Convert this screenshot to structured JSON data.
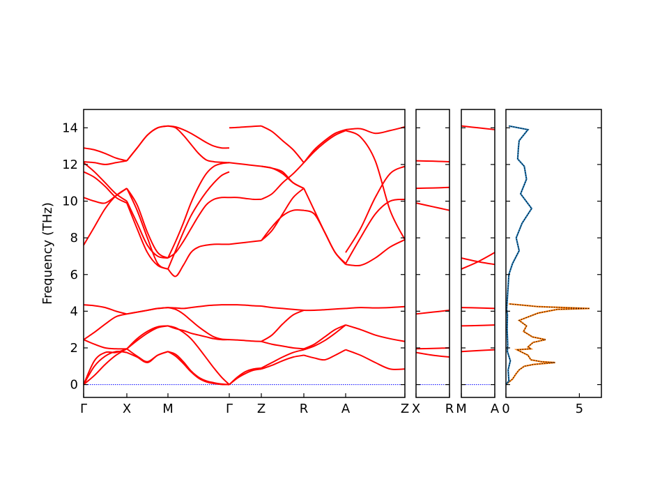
{
  "chart_data": [
    {
      "type": "line",
      "chart": "phonon-band-structure",
      "ylabel": "Frequency (THz)",
      "ylim": [
        -0.7,
        15.0
      ],
      "yticks": [
        0,
        2,
        4,
        6,
        8,
        10,
        12,
        14
      ],
      "grid": false,
      "series_color": "#ff0000",
      "zero_line_color": "#0000ff",
      "panels": [
        {
          "labels": [
            "Γ",
            "X",
            "M",
            "Γ",
            "Z",
            "R",
            "A",
            "Z"
          ],
          "segments": [
            {
              "from": "Γ",
              "to": "X",
              "x": [
                0,
                0.25,
                0.5,
                0.75,
                1
              ],
              "bands": [
                [
                  0,
                  1.0,
                  1.55,
                  1.8,
                  1.75
                ],
                [
                  0,
                  1.3,
                  1.75,
                  1.75,
                  1.95
                ],
                [
                  0,
                  0.5,
                  1.1,
                  1.6,
                  1.95
                ],
                [
                  2.45,
                  2.2,
                  2.0,
                  1.95,
                  1.95
                ],
                [
                  2.45,
                  2.85,
                  3.3,
                  3.7,
                  3.85
                ],
                [
                  4.35,
                  4.3,
                  4.2,
                  4.0,
                  3.85
                ],
                [
                  7.6,
                  8.6,
                  9.6,
                  10.3,
                  10.7
                ],
                [
                  10.2,
                  10.0,
                  9.9,
                  10.3,
                  10.7
                ],
                [
                  11.6,
                  11.3,
                  10.8,
                  10.2,
                  9.9
                ],
                [
                  12.1,
                  11.6,
                  11.0,
                  10.4,
                  10.0
                ],
                [
                  12.15,
                  12.1,
                  12.0,
                  12.1,
                  12.2
                ],
                [
                  12.9,
                  12.8,
                  12.6,
                  12.35,
                  12.2
                ]
              ]
            },
            {
              "from": "X",
              "to": "M",
              "x": [
                0,
                0.25,
                0.5,
                0.75,
                1
              ],
              "bands": [
                [
                  1.75,
                  1.5,
                  1.2,
                  1.6,
                  1.8
                ],
                [
                  1.95,
                  1.55,
                  1.25,
                  1.6,
                  1.8
                ],
                [
                  1.95,
                  2.4,
                  2.8,
                  3.1,
                  3.2
                ],
                [
                  1.95,
                  2.5,
                  2.9,
                  3.15,
                  3.2
                ],
                [
                  3.85,
                  3.95,
                  4.05,
                  4.15,
                  4.2
                ],
                [
                  3.85,
                  3.95,
                  4.05,
                  4.15,
                  4.2
                ],
                [
                  10.7,
                  9.5,
                  8.0,
                  6.6,
                  6.3
                ],
                [
                  10.7,
                  9.8,
                  8.3,
                  7.2,
                  6.9
                ],
                [
                  9.9,
                  8.5,
                  7.2,
                  6.5,
                  6.3
                ],
                [
                  10.0,
                  8.8,
                  7.6,
                  7.0,
                  6.9
                ],
                [
                  12.2,
                  12.9,
                  13.6,
                  14.0,
                  14.1
                ],
                [
                  12.2,
                  12.9,
                  13.6,
                  14.0,
                  14.1
                ]
              ]
            },
            {
              "from": "M",
              "to": "Γ",
              "x": [
                0,
                0.125,
                0.25,
                0.375,
                0.5,
                0.625,
                0.75,
                0.875,
                1
              ],
              "bands": [
                [
                  1.8,
                  1.65,
                  1.25,
                  0.75,
                  0.4,
                  0.2,
                  0.1,
                  0.03,
                  0
                ],
                [
                  1.8,
                  1.55,
                  1.15,
                  0.7,
                  0.35,
                  0.15,
                  0.06,
                  0.01,
                  0
                ],
                [
                  3.2,
                  3.1,
                  2.85,
                  2.5,
                  2.0,
                  1.45,
                  0.9,
                  0.4,
                  0
                ],
                [
                  3.2,
                  3.05,
                  2.95,
                  2.8,
                  2.7,
                  2.6,
                  2.5,
                  2.45,
                  2.45
                ],
                [
                  4.2,
                  4.1,
                  3.85,
                  3.5,
                  3.15,
                  2.85,
                  2.6,
                  2.48,
                  2.45
                ],
                [
                  4.2,
                  4.18,
                  4.15,
                  4.2,
                  4.25,
                  4.3,
                  4.33,
                  4.35,
                  4.35
                ],
                [
                  6.3,
                  5.9,
                  6.5,
                  7.2,
                  7.5,
                  7.6,
                  7.65,
                  7.65,
                  7.65
                ],
                [
                  6.9,
                  7.2,
                  7.8,
                  8.5,
                  9.2,
                  9.8,
                  10.1,
                  10.2,
                  10.2
                ],
                [
                  6.3,
                  7.3,
                  8.3,
                  9.2,
                  9.9,
                  10.5,
                  11.0,
                  11.4,
                  11.6
                ],
                [
                  6.9,
                  7.8,
                  8.8,
                  9.9,
                  10.8,
                  11.5,
                  11.9,
                  12.05,
                  12.1
                ],
                [
                  14.1,
                  14.05,
                  13.9,
                  13.7,
                  13.45,
                  13.2,
                  13.0,
                  12.9,
                  12.9
                ],
                [
                  14.1,
                  14.0,
                  13.6,
                  13.1,
                  12.6,
                  12.25,
                  12.15,
                  12.12,
                  12.1
                ]
              ]
            },
            {
              "from": "Γ",
              "to": "Z",
              "x": [
                0,
                0.25,
                0.5,
                0.75,
                1
              ],
              "bands": [
                [
                  0,
                  0.35,
                  0.6,
                  0.78,
                  0.85
                ],
                [
                  0,
                  0.4,
                  0.7,
                  0.85,
                  0.9
                ],
                [
                  2.45,
                  2.43,
                  2.4,
                  2.37,
                  2.35
                ],
                [
                  4.35,
                  4.35,
                  4.33,
                  4.3,
                  4.28
                ],
                [
                  7.65,
                  7.7,
                  7.75,
                  7.8,
                  7.85
                ],
                [
                  10.2,
                  10.2,
                  10.15,
                  10.1,
                  10.1
                ],
                [
                  12.1,
                  12.05,
                  12.0,
                  11.95,
                  11.9
                ],
                [
                  14.0,
                  14.02,
                  14.05,
                  14.08,
                  14.1
                ]
              ]
            },
            {
              "from": "Z",
              "to": "R",
              "x": [
                0,
                0.25,
                0.5,
                0.75,
                1
              ],
              "bands": [
                [
                  0.85,
                  1.05,
                  1.3,
                  1.5,
                  1.6
                ],
                [
                  0.9,
                  1.2,
                  1.5,
                  1.75,
                  1.9
                ],
                [
                  2.35,
                  2.2,
                  2.1,
                  2.0,
                  1.95
                ],
                [
                  2.35,
                  2.7,
                  3.3,
                  3.8,
                  4.05
                ],
                [
                  4.28,
                  4.2,
                  4.15,
                  4.1,
                  4.05
                ],
                [
                  7.85,
                  8.6,
                  9.2,
                  9.5,
                  9.5
                ],
                [
                  7.85,
                  8.4,
                  9.3,
                  10.2,
                  10.7
                ],
                [
                  10.1,
                  10.4,
                  11.0,
                  11.5,
                  12.1
                ],
                [
                  11.9,
                  11.8,
                  11.6,
                  11.0,
                  10.7
                ],
                [
                  11.9,
                  11.8,
                  11.5,
                  11.0,
                  10.7
                ],
                [
                  14.1,
                  13.8,
                  13.3,
                  12.8,
                  12.1
                ]
              ]
            },
            {
              "from": "R",
              "to": "A",
              "x": [
                0,
                0.25,
                0.5,
                0.75,
                1
              ],
              "bands": [
                [
                  1.6,
                  1.45,
                  1.35,
                  1.6,
                  1.9
                ],
                [
                  1.9,
                  2.1,
                  2.4,
                  2.8,
                  3.25
                ],
                [
                  1.95,
                  2.2,
                  2.6,
                  3.0,
                  3.25
                ],
                [
                  4.05,
                  4.05,
                  4.08,
                  4.12,
                  4.15
                ],
                [
                  9.5,
                  9.3,
                  8.3,
                  7.2,
                  6.6
                ],
                [
                  10.7,
                  9.5,
                  8.3,
                  7.2,
                  6.55
                ],
                [
                  12.1,
                  12.7,
                  13.2,
                  13.6,
                  13.85
                ],
                [
                  12.1,
                  12.8,
                  13.3,
                  13.7,
                  13.9
                ]
              ]
            },
            {
              "from": "A",
              "to": "Z",
              "x": [
                0,
                0.25,
                0.5,
                0.75,
                1
              ],
              "bands": [
                [
                  1.9,
                  1.6,
                  1.2,
                  0.85,
                  0.85
                ],
                [
                  3.25,
                  3.0,
                  2.7,
                  2.5,
                  2.35
                ],
                [
                  4.15,
                  4.2,
                  4.18,
                  4.2,
                  4.25
                ],
                [
                  6.55,
                  6.5,
                  6.9,
                  7.5,
                  7.9
                ],
                [
                  6.6,
                  8.0,
                  9.3,
                  10.0,
                  10.1
                ],
                [
                  7.2,
                  8.5,
                  10.2,
                  11.5,
                  11.9
                ],
                [
                  13.85,
                  13.5,
                  12.2,
                  9.5,
                  7.9
                ],
                [
                  13.9,
                  13.95,
                  13.7,
                  13.85,
                  14.05
                ]
              ]
            }
          ]
        },
        {
          "labels": [
            "X",
            "R"
          ],
          "segments": [
            {
              "from": "X",
              "to": "R",
              "x": [
                0,
                0.5,
                1
              ],
              "bands": [
                [
                  1.75,
                  1.6,
                  1.5
                ],
                [
                  1.95,
                  1.97,
                  2.0
                ],
                [
                  3.85,
                  3.95,
                  4.05
                ],
                [
                  9.9,
                  9.7,
                  9.5
                ],
                [
                  10.7,
                  10.72,
                  10.75
                ],
                [
                  12.2,
                  12.18,
                  12.15
                ]
              ]
            }
          ]
        },
        {
          "labels": [
            "M",
            "A"
          ],
          "segments": [
            {
              "from": "M",
              "to": "A",
              "x": [
                0,
                0.5,
                1
              ],
              "bands": [
                [
                  1.8,
                  1.85,
                  1.9
                ],
                [
                  3.2,
                  3.22,
                  3.25
                ],
                [
                  4.2,
                  4.18,
                  4.15
                ],
                [
                  6.3,
                  6.7,
                  7.2
                ],
                [
                  6.9,
                  6.7,
                  6.55
                ],
                [
                  14.1,
                  14.0,
                  13.9
                ]
              ]
            }
          ]
        }
      ]
    },
    {
      "type": "line",
      "chart": "density-of-states",
      "xlim": [
        0,
        6.5
      ],
      "ylim": [
        -0.7,
        15.0
      ],
      "xticks": [
        0,
        5
      ],
      "grid": false,
      "series": [
        {
          "color": "#ff7f0e",
          "y": [
            0,
            0.3,
            0.6,
            0.8,
            1.0,
            1.1,
            1.2,
            1.25,
            1.35,
            1.6,
            1.9,
            1.95,
            2.05,
            2.3,
            2.45,
            2.6,
            2.9,
            3.2,
            3.5,
            3.9,
            4.1,
            4.15,
            4.25,
            4.4
          ],
          "dos": [
            0,
            0.45,
            0.7,
            0.9,
            1.25,
            1.9,
            3.35,
            2.4,
            1.7,
            1.5,
            0.75,
            1.7,
            1.5,
            1.85,
            2.7,
            1.8,
            1.2,
            1.4,
            0.9,
            2.2,
            3.5,
            5.7,
            2.2,
            0.2
          ]
        },
        {
          "color": "#1f77b4",
          "y": [
            0,
            0.2,
            0.8,
            1.3,
            1.8,
            2.2,
            3.0,
            3.8,
            4.1,
            6.0,
            6.6,
            7.3,
            8.0,
            8.8,
            9.6,
            10.4,
            11.2,
            11.9,
            12.3,
            12.9,
            13.3,
            13.9,
            14.1
          ],
          "dos": [
            0,
            0.2,
            0.15,
            0.3,
            0.1,
            0.12,
            0.08,
            0.1,
            0.05,
            0.2,
            0.45,
            0.9,
            0.7,
            1.1,
            1.75,
            1.0,
            1.4,
            1.25,
            0.8,
            0.85,
            0.9,
            1.5,
            0.2
          ]
        }
      ]
    }
  ]
}
